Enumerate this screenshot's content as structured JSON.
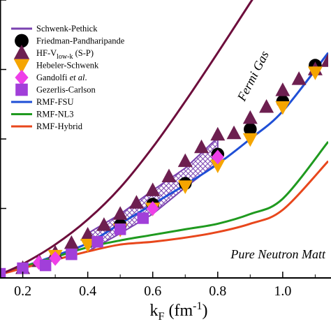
{
  "chart_data": {
    "type": "line",
    "xlabel": "k_F (fm^-1)",
    "xlim": [
      0.13,
      1.14
    ],
    "ylim": [
      0,
      20
    ],
    "x_ticks": [
      0.2,
      0.4,
      0.6,
      0.8,
      1.0
    ],
    "x_tick_labels": [
      "0.2",
      "0.4",
      "0.6",
      "0.8",
      "1.0"
    ],
    "y_ticks": [
      0,
      5,
      10,
      15,
      20
    ],
    "grid": false,
    "legend_position": "top-left",
    "annotations": [
      {
        "text": "Fermi Gas",
        "x": 0.92,
        "y": 14.4,
        "angle": -63
      },
      {
        "text": "Pure Neutron Matt",
        "x": 0.84,
        "y": 1.4,
        "angle": 0
      }
    ],
    "series": [
      {
        "name": "RMF-FSU",
        "kind": "line",
        "color": "#1f4fd6",
        "x": [
          0.13,
          0.2,
          0.3,
          0.4,
          0.5,
          0.6,
          0.7,
          0.8,
          0.9,
          1.0,
          1.14
        ],
        "y": [
          0.25,
          0.8,
          1.6,
          2.5,
          3.9,
          5.3,
          6.7,
          8.2,
          10.0,
          12.0,
          16.2
        ]
      },
      {
        "name": "RMF-NL3",
        "kind": "line",
        "color": "#1f9a1f",
        "x": [
          0.13,
          0.2,
          0.3,
          0.4,
          0.5,
          0.6,
          0.7,
          0.8,
          0.9,
          1.0,
          1.14
        ],
        "y": [
          0.25,
          0.8,
          1.5,
          2.2,
          2.7,
          3.1,
          3.5,
          3.9,
          4.6,
          5.7,
          9.8
        ]
      },
      {
        "name": "RMF-Hybrid",
        "kind": "line",
        "color": "#e8471c",
        "x": [
          0.13,
          0.2,
          0.3,
          0.4,
          0.5,
          0.6,
          0.7,
          0.8,
          0.9,
          1.0,
          1.14
        ],
        "y": [
          0.25,
          0.7,
          1.3,
          1.9,
          2.4,
          2.6,
          2.9,
          3.3,
          3.9,
          4.9,
          8.4
        ]
      },
      {
        "name": "Fermi Gas",
        "kind": "line",
        "color": "#6d0e3c",
        "x": [
          0.13,
          0.2,
          0.3,
          0.4,
          0.5,
          0.6,
          0.7,
          0.8,
          0.9,
          0.95
        ],
        "y": [
          0.25,
          1.0,
          2.4,
          4.2,
          6.5,
          9.4,
          12.7,
          16.2,
          19.8,
          21.5
        ]
      },
      {
        "name": "Schwenk-Pethick",
        "kind": "band",
        "color": "#7a42b0",
        "x_band": [
          0.4,
          0.5,
          0.6,
          0.7,
          0.8
        ],
        "lower": [
          1.9,
          3.2,
          4.6,
          6.5,
          8.3
        ],
        "upper": [
          3.2,
          4.6,
          6.3,
          7.9,
          10.1
        ]
      },
      {
        "name": "Friedman-Pandharipande",
        "kind": "marker",
        "marker": "circle",
        "color": "#000000",
        "x": [
          0.5,
          0.6,
          0.7,
          0.8,
          0.9,
          1.0,
          1.1
        ],
        "y": [
          3.8,
          5.3,
          6.8,
          8.9,
          10.7,
          12.7,
          15.3
        ]
      },
      {
        "name": "HF-V_low-k (S-P)",
        "kind": "marker",
        "marker": "triangle",
        "color": "#6d1f50",
        "x": [
          0.2,
          0.25,
          0.3,
          0.35,
          0.4,
          0.45,
          0.5,
          0.55,
          0.6,
          0.65,
          0.7,
          0.75,
          0.8,
          0.85,
          0.9,
          0.95,
          1.0,
          1.05,
          1.1,
          1.14
        ],
        "y": [
          0.7,
          1.2,
          1.8,
          2.5,
          3.1,
          3.8,
          4.6,
          5.4,
          6.3,
          7.3,
          8.4,
          9.4,
          10.3,
          10.4,
          11.5,
          12.3,
          13.5,
          14.3,
          15.0,
          15.6
        ]
      },
      {
        "name": "Hebeler-Schwenk",
        "kind": "marker",
        "marker": "triangle-down",
        "color": "#f5a500",
        "x": [
          0.3,
          0.4,
          0.5,
          0.6,
          0.7,
          0.8,
          0.9,
          1.0,
          1.1
        ],
        "y": [
          1.6,
          2.4,
          3.5,
          5.0,
          6.6,
          8.1,
          10.0,
          12.3,
          14.8
        ]
      },
      {
        "name": "Gandolfi et al.",
        "kind": "marker",
        "marker": "diamond",
        "color": "#ee3fe8",
        "x": [
          0.25,
          0.3,
          0.6,
          0.8
        ],
        "y": [
          1.1,
          1.4,
          5.0,
          8.7
        ]
      },
      {
        "name": "Gezerlis-Carlson",
        "kind": "marker",
        "marker": "square",
        "color": "#a13fd9",
        "x": [
          0.13,
          0.2,
          0.27,
          0.35,
          0.43,
          0.5,
          0.57
        ],
        "y": [
          0.3,
          0.7,
          0.9,
          1.7,
          2.6,
          3.5,
          4.3
        ]
      }
    ]
  }
}
